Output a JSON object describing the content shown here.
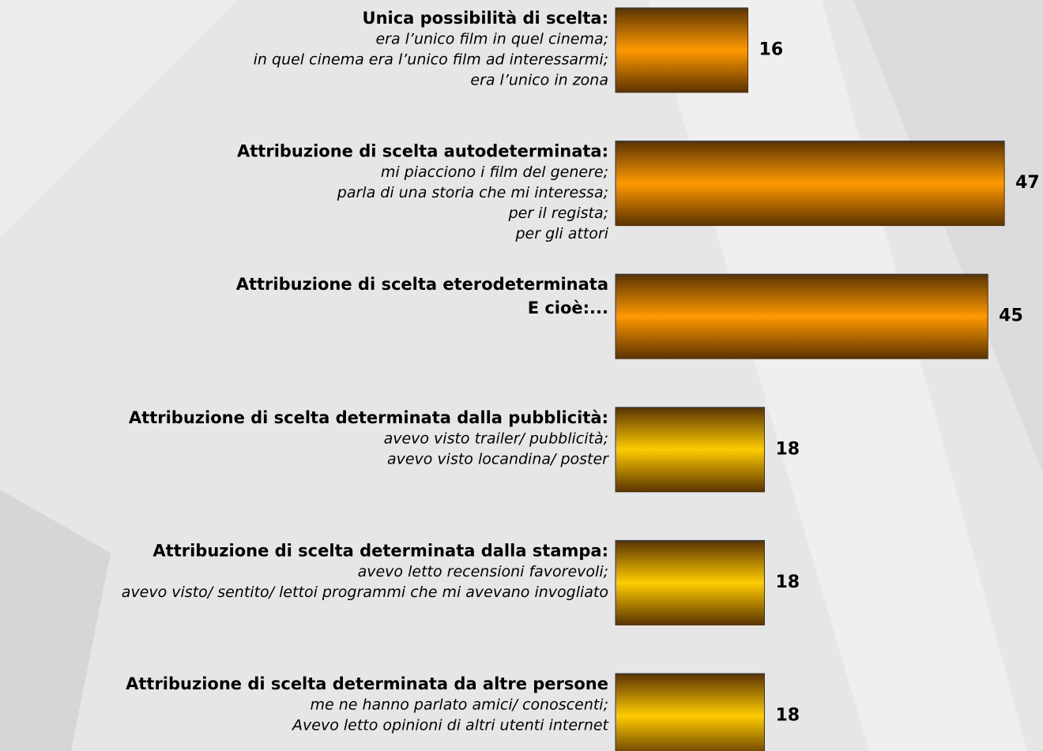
{
  "chart_data": {
    "type": "bar",
    "orientation": "horizontal",
    "categories": [
      [
        "Unica possibilità di scelta:"
      ],
      [
        "Attribuzione di scelta autodeterminata:"
      ],
      [
        "Attribuzione di scelta eterodeterminata",
        "E cioè:..."
      ],
      [
        "Attribuzione di scelta determinata dalla pubblicità:"
      ],
      [
        "Attribuzione di scelta determinata dalla stampa:"
      ],
      [
        "Attribuzione di scelta determinata da altre persone"
      ]
    ],
    "descriptions": [
      [
        "era l’unico film in quel cinema;",
        "in quel cinema era l’unico film ad interessarmi;",
        "era l’unico in zona"
      ],
      [
        "mi piacciono i film del genere;",
        "parla di una storia che mi interessa;",
        "per il regista;",
        "per gli attori"
      ],
      [],
      [
        "avevo visto trailer/ pubblicità;",
        "avevo visto locandina/ poster"
      ],
      [
        "avevo letto recensioni favorevoli;",
        "avevo visto/ sentito/ lettoi programmi che mi avevano invogliato"
      ],
      [
        "me ne hanno parlato amici/ conoscenti;",
        "Avevo letto opinioni di altri utenti internet"
      ]
    ],
    "values": [
      16,
      47,
      45,
      18,
      18,
      18
    ],
    "colors": [
      "#ff9900",
      "#ff9900",
      "#ff9900",
      "#ffcc00",
      "#ffcc00",
      "#ffcc00"
    ]
  }
}
